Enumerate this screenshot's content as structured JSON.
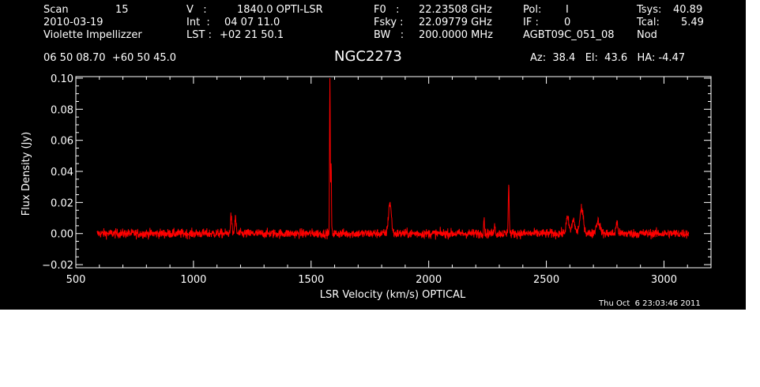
{
  "header": {
    "scan_label": "Scan",
    "scan_value": "15",
    "date": "2010-03-19",
    "observer": "Violette Impellizzer",
    "v_label": "V   :",
    "v_value": "1840.0 OPTI-LSR",
    "int_label": "Int  :",
    "int_value": "04 07 11.0",
    "lst_label": "LST :",
    "lst_value": "+02 21 50.1",
    "f0_label": "F0   :",
    "f0_value": "22.23508 GHz",
    "fsky_label": "Fsky :",
    "fsky_value": "22.09779 GHz",
    "bw_label": "BW   :",
    "bw_value": "200.0000 MHz",
    "pol_label": "Pol:",
    "pol_value": "I",
    "if_label": "IF :",
    "if_value": "0",
    "project": "AGBT09C_051_08",
    "tsys_label": "Tsys:",
    "tsys_value": "40.89",
    "tcal_label": "Tcal:",
    "tcal_value": "5.49",
    "mode": "Nod",
    "coords": "06 50 08.70  +60 50 45.0",
    "source": "NGC2273",
    "az_el_ha": "Az:  38.4   El:  43.6   HA: -4.47"
  },
  "timestamp": "Thu Oct  6 23:03:46 2011",
  "colors": {
    "background": "#000000",
    "axes": "#ffffff",
    "trace": "#ff0000"
  },
  "chart_data": {
    "type": "line",
    "xlabel": "LSR Velocity (km/s) OPTICAL",
    "ylabel": "Flux Density (Jy)",
    "xlim": [
      500,
      3200
    ],
    "ylim": [
      -0.022,
      0.101
    ],
    "x_ticks": [
      500,
      1000,
      1500,
      2000,
      2500,
      3000
    ],
    "y_ticks": [
      -0.02,
      0.0,
      0.02,
      0.04,
      0.06,
      0.08,
      0.1
    ],
    "x_tick_labels": [
      "500",
      "1000",
      "1500",
      "2000",
      "2500",
      "3000"
    ],
    "y_tick_labels": [
      "−0.02",
      "0.00",
      "0.02",
      "0.04",
      "0.06",
      "0.08",
      "0.10"
    ],
    "grid": false,
    "series": [
      {
        "x_start": 590,
        "x_end": 3105,
        "baseline": 0.0,
        "noise_rms": 0.0015,
        "features": [
          {
            "x": 1160,
            "y": 0.011,
            "width": 3
          },
          {
            "x": 1178,
            "y": 0.01,
            "width": 3
          },
          {
            "x": 1580,
            "y": 0.098,
            "width": 1.5
          },
          {
            "x": 1585,
            "y": 0.046,
            "width": 1.5
          },
          {
            "x": 1835,
            "y": 0.02,
            "width": 6
          },
          {
            "x": 2235,
            "y": 0.01,
            "width": 2
          },
          {
            "x": 2280,
            "y": 0.007,
            "width": 2
          },
          {
            "x": 2340,
            "y": 0.032,
            "width": 2
          },
          {
            "x": 2590,
            "y": 0.01,
            "width": 6
          },
          {
            "x": 2615,
            "y": 0.009,
            "width": 6
          },
          {
            "x": 2650,
            "y": 0.015,
            "width": 8
          },
          {
            "x": 2720,
            "y": 0.008,
            "width": 8
          },
          {
            "x": 2800,
            "y": 0.007,
            "width": 4
          }
        ]
      }
    ]
  }
}
